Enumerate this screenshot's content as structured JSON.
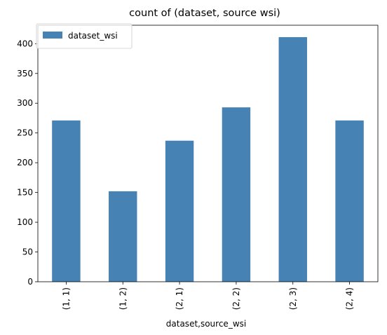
{
  "chart_data": {
    "type": "bar",
    "title": "count of (dataset, source wsi)",
    "xlabel": "dataset,source_wsi",
    "ylabel": "",
    "categories": [
      "(1, 1)",
      "(1, 2)",
      "(2, 1)",
      "(2, 2)",
      "(2, 3)",
      "(2, 4)"
    ],
    "series": [
      {
        "name": "dataset_wsi",
        "values": [
          271,
          152,
          237,
          293,
          411,
          271
        ],
        "color": "#4682b4"
      }
    ],
    "ylim": [
      0,
      431
    ],
    "yticks": [
      0,
      50,
      100,
      150,
      200,
      250,
      300,
      350,
      400
    ],
    "grid": false,
    "legend_position": "top-left"
  }
}
